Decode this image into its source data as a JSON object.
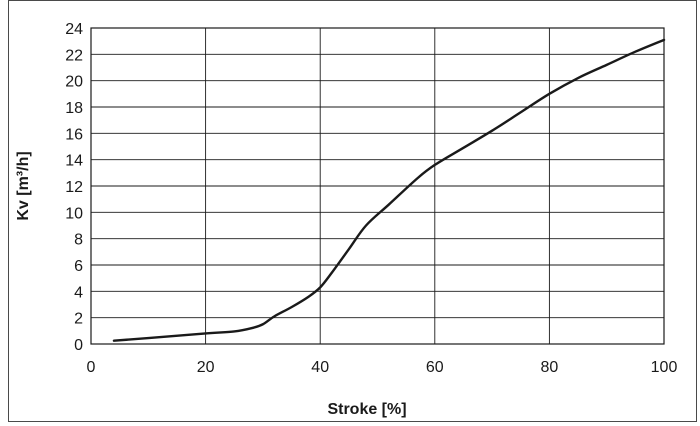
{
  "chart_data": {
    "type": "line",
    "title": "",
    "xlabel": "Stroke [%]",
    "ylabel": "Kv [m³/h]",
    "xlim": [
      0,
      100
    ],
    "ylim": [
      0,
      24
    ],
    "x_ticks": [
      0,
      20,
      40,
      60,
      80,
      100
    ],
    "y_ticks": [
      0,
      2,
      4,
      6,
      8,
      10,
      12,
      14,
      16,
      18,
      20,
      22,
      24
    ],
    "grid": true,
    "legend": "none",
    "series": [
      {
        "color": "#1a1a1a",
        "x": [
          4,
          10,
          20,
          25,
          28,
          30,
          32,
          35,
          38,
          40,
          42,
          45,
          48,
          52,
          57,
          60,
          65,
          70,
          75,
          80,
          85,
          90,
          95,
          100
        ],
        "y": [
          0.25,
          0.45,
          0.8,
          0.95,
          1.2,
          1.5,
          2.1,
          2.8,
          3.6,
          4.3,
          5.4,
          7.2,
          9.0,
          10.6,
          12.6,
          13.6,
          14.9,
          16.2,
          17.6,
          19.0,
          20.2,
          21.2,
          22.2,
          23.1
        ]
      }
    ]
  }
}
